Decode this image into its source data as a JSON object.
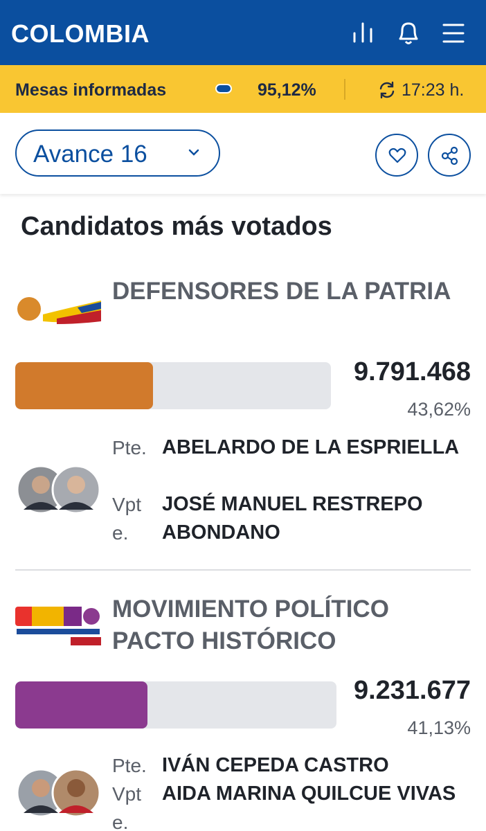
{
  "header": {
    "title": "COLOMBIA"
  },
  "status": {
    "label": "Mesas informadas",
    "percent": "95,12%",
    "time": "17:23 h."
  },
  "toolbar": {
    "avance": "Avance 16"
  },
  "section_title": "Candidatos más votados",
  "candidates": [
    {
      "party": "DEFENSORES DE LA PATRIA",
      "votes": "9.791.468",
      "percent": {
        "value": 43.62,
        "label": "43,62%"
      },
      "color": "#d17a2c",
      "president_label": "Pte.",
      "president": "ABELARDO DE LA ESPRIELLA",
      "vice_label": "Vpte.",
      "vice": "JOSÉ MANUEL RESTREPO ABONDANO"
    },
    {
      "party": "MOVIMIENTO POLÍTICO PACTO HISTÓRICO",
      "votes": "9.231.677",
      "percent": {
        "value": 41.13,
        "label": "41,13%"
      },
      "color": "#8b3a8f",
      "president_label": "Pte.",
      "president": "IVÁN CEPEDA CASTRO",
      "vice_label": "Vpte.",
      "vice": "AIDA MARINA QUILCUE VIVAS"
    }
  ]
}
